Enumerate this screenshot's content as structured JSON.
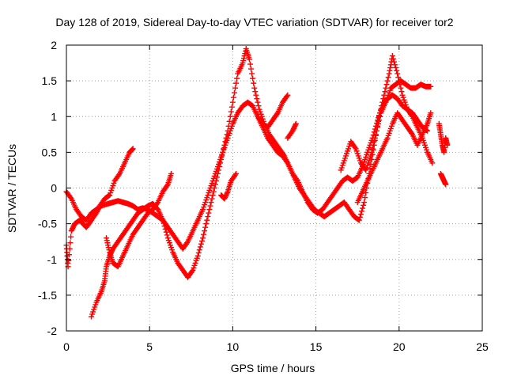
{
  "chart_data": {
    "type": "scatter",
    "title": "Day 128 of 2019, Sidereal Day-to-day VTEC variation (SDTVAR) for receiver tor2",
    "xlabel": "GPS time / hours",
    "ylabel": "SDTVAR / TECUs",
    "xlim": [
      0,
      25
    ],
    "ylim": [
      -2,
      2
    ],
    "x_ticks": [
      "0",
      "5",
      "10",
      "15",
      "20",
      "25"
    ],
    "y_ticks": [
      "-2",
      "-1.5",
      "-1",
      "-0.5",
      "0",
      "0.5",
      "1",
      "1.5",
      "2"
    ],
    "grid": true,
    "marker": "plus",
    "color": "#ff0000",
    "series": [
      {
        "points": [
          [
            0.0,
            -0.05
          ],
          [
            0.3,
            -0.15
          ],
          [
            0.6,
            -0.3
          ],
          [
            0.9,
            -0.4
          ],
          [
            1.2,
            -0.45
          ],
          [
            1.5,
            -0.35
          ],
          [
            1.8,
            -0.3
          ],
          [
            2.1,
            -0.25
          ],
          [
            2.5,
            -0.22
          ],
          [
            2.8,
            -0.2
          ],
          [
            3.1,
            -0.18
          ],
          [
            3.4,
            -0.2
          ],
          [
            3.7,
            -0.22
          ],
          [
            4.0,
            -0.25
          ],
          [
            4.3,
            -0.3
          ],
          [
            4.6,
            -0.28
          ],
          [
            4.9,
            -0.3
          ],
          [
            5.2,
            -0.35
          ],
          [
            5.5,
            -0.4
          ],
          [
            5.8,
            -0.45
          ],
          [
            6.1,
            -0.55
          ],
          [
            6.4,
            -0.65
          ],
          [
            6.7,
            -0.75
          ],
          [
            7.0,
            -0.85
          ],
          [
            7.3,
            -0.75
          ],
          [
            7.6,
            -0.6
          ],
          [
            7.9,
            -0.45
          ],
          [
            8.2,
            -0.3
          ],
          [
            8.5,
            -0.1
          ],
          [
            8.8,
            0.1
          ],
          [
            9.1,
            0.3
          ],
          [
            9.4,
            0.5
          ],
          [
            9.7,
            0.7
          ],
          [
            10.0,
            0.9
          ],
          [
            10.3,
            1.05
          ],
          [
            10.6,
            1.15
          ],
          [
            10.9,
            1.2
          ],
          [
            11.2,
            1.15
          ],
          [
            11.5,
            1.0
          ],
          [
            11.8,
            0.85
          ],
          [
            12.1,
            0.7
          ],
          [
            12.4,
            0.6
          ],
          [
            12.7,
            0.5
          ],
          [
            13.0,
            0.45
          ],
          [
            13.3,
            0.35
          ],
          [
            13.6,
            0.2
          ],
          [
            13.9,
            0.1
          ],
          [
            14.2,
            -0.05
          ],
          [
            14.5,
            -0.2
          ],
          [
            14.8,
            -0.3
          ],
          [
            15.1,
            -0.35
          ],
          [
            15.4,
            -0.3
          ],
          [
            15.7,
            -0.2
          ],
          [
            16.0,
            -0.1
          ],
          [
            16.3,
            0.0
          ],
          [
            16.6,
            0.1
          ],
          [
            16.9,
            0.15
          ],
          [
            17.2,
            0.1
          ],
          [
            17.5,
            0.15
          ],
          [
            17.8,
            0.3
          ],
          [
            18.1,
            0.5
          ],
          [
            18.4,
            0.7
          ],
          [
            18.7,
            0.95
          ],
          [
            19.0,
            1.15
          ],
          [
            19.3,
            1.25
          ],
          [
            19.6,
            1.3
          ],
          [
            19.9,
            1.25
          ],
          [
            20.2,
            1.15
          ],
          [
            20.5,
            1.1
          ],
          [
            20.8,
            1.05
          ],
          [
            21.1,
            0.95
          ],
          [
            21.4,
            0.85
          ],
          [
            21.7,
            0.8
          ]
        ]
      },
      {
        "points": [
          [
            1.5,
            -1.8
          ],
          [
            1.8,
            -1.6
          ],
          [
            2.1,
            -1.45
          ],
          [
            2.3,
            -1.3
          ],
          [
            2.4,
            -1.1
          ],
          [
            2.6,
            -0.95
          ],
          [
            2.8,
            -0.85
          ],
          [
            3.1,
            -0.75
          ],
          [
            3.4,
            -0.65
          ],
          [
            3.7,
            -0.55
          ],
          [
            4.0,
            -0.45
          ],
          [
            4.3,
            -0.35
          ],
          [
            4.6,
            -0.3
          ],
          [
            4.9,
            -0.25
          ],
          [
            5.2,
            -0.22
          ],
          [
            5.5,
            -0.3
          ],
          [
            5.8,
            -0.45
          ],
          [
            6.1,
            -0.7
          ],
          [
            6.4,
            -0.9
          ],
          [
            6.7,
            -1.05
          ],
          [
            7.0,
            -1.15
          ],
          [
            7.3,
            -1.25
          ],
          [
            7.6,
            -1.15
          ],
          [
            7.9,
            -0.95
          ],
          [
            8.2,
            -0.7
          ],
          [
            8.5,
            -0.4
          ],
          [
            8.8,
            -0.1
          ],
          [
            9.1,
            0.2
          ],
          [
            9.4,
            0.5
          ],
          [
            9.7,
            0.8
          ],
          [
            10.0,
            1.2
          ],
          [
            10.3,
            1.6
          ],
          [
            10.6,
            1.75
          ],
          [
            10.8,
            1.95
          ],
          [
            11.0,
            1.8
          ],
          [
            11.3,
            1.4
          ],
          [
            11.6,
            1.1
          ],
          [
            11.9,
            0.9
          ],
          [
            12.2,
            0.75
          ],
          [
            12.5,
            0.65
          ],
          [
            12.8,
            0.55
          ],
          [
            13.1,
            0.45
          ],
          [
            13.4,
            0.3
          ],
          [
            13.7,
            0.15
          ],
          [
            14.0,
            0.0
          ],
          [
            14.3,
            -0.1
          ],
          [
            14.6,
            -0.2
          ],
          [
            14.9,
            -0.3
          ],
          [
            15.2,
            -0.35
          ],
          [
            15.5,
            -0.4
          ],
          [
            15.8,
            -0.35
          ],
          [
            16.1,
            -0.3
          ],
          [
            16.4,
            -0.25
          ],
          [
            16.7,
            -0.2
          ],
          [
            17.0,
            -0.3
          ],
          [
            17.3,
            -0.4
          ],
          [
            17.6,
            -0.45
          ],
          [
            17.9,
            -0.2
          ],
          [
            18.2,
            0.2
          ],
          [
            18.5,
            0.6
          ],
          [
            18.8,
            1.0
          ],
          [
            19.1,
            1.3
          ],
          [
            19.4,
            1.6
          ],
          [
            19.6,
            1.85
          ],
          [
            19.9,
            1.6
          ],
          [
            20.2,
            1.3
          ],
          [
            20.5,
            1.1
          ],
          [
            20.8,
            1.0
          ],
          [
            21.1,
            0.85
          ],
          [
            21.4,
            0.7
          ],
          [
            21.7,
            0.5
          ],
          [
            22.0,
            0.35
          ]
        ]
      },
      {
        "points": [
          [
            0.0,
            -0.8
          ],
          [
            0.1,
            -1.1
          ],
          [
            0.3,
            -0.6
          ],
          [
            0.5,
            -0.5
          ],
          [
            0.8,
            -0.45
          ],
          [
            1.0,
            -0.5
          ],
          [
            1.2,
            -0.55
          ],
          [
            1.5,
            -0.45
          ],
          [
            1.8,
            -0.35
          ],
          [
            2.0,
            -0.25
          ],
          [
            2.3,
            -0.15
          ],
          [
            2.6,
            -0.1
          ],
          [
            2.9,
            0.1
          ],
          [
            3.2,
            0.2
          ],
          [
            3.5,
            0.35
          ],
          [
            3.8,
            0.5
          ],
          [
            4.0,
            0.55
          ]
        ]
      },
      {
        "points": [
          [
            2.4,
            -0.7
          ],
          [
            2.6,
            -0.9
          ],
          [
            2.8,
            -1.05
          ],
          [
            3.1,
            -1.1
          ],
          [
            3.4,
            -0.95
          ],
          [
            3.7,
            -0.8
          ],
          [
            4.0,
            -0.65
          ],
          [
            4.3,
            -0.55
          ],
          [
            4.6,
            -0.45
          ],
          [
            4.9,
            -0.35
          ],
          [
            5.2,
            -0.3
          ],
          [
            5.5,
            -0.2
          ],
          [
            5.8,
            -0.05
          ],
          [
            6.1,
            0.05
          ],
          [
            6.3,
            0.2
          ]
        ]
      },
      {
        "points": [
          [
            11.5,
            1.0
          ],
          [
            11.8,
            0.9
          ],
          [
            12.1,
            0.85
          ],
          [
            12.4,
            0.95
          ],
          [
            12.7,
            1.05
          ],
          [
            13.0,
            1.2
          ],
          [
            13.3,
            1.3
          ]
        ]
      },
      {
        "points": [
          [
            13.3,
            0.7
          ],
          [
            13.6,
            0.8
          ],
          [
            13.8,
            0.9
          ]
        ]
      },
      {
        "points": [
          [
            16.5,
            0.25
          ],
          [
            16.8,
            0.45
          ],
          [
            17.1,
            0.65
          ],
          [
            17.4,
            0.55
          ],
          [
            17.7,
            0.35
          ],
          [
            18.0,
            0.25
          ],
          [
            18.3,
            0.45
          ],
          [
            18.6,
            0.75
          ],
          [
            18.9,
            1.05
          ],
          [
            19.2,
            1.2
          ],
          [
            19.5,
            1.4
          ],
          [
            19.8,
            1.45
          ],
          [
            20.1,
            1.5
          ],
          [
            20.4,
            1.45
          ],
          [
            20.7,
            1.4
          ],
          [
            21.0,
            1.4
          ],
          [
            21.3,
            1.45
          ],
          [
            21.6,
            1.42
          ],
          [
            21.9,
            1.42
          ]
        ]
      },
      {
        "points": [
          [
            17.5,
            -0.2
          ],
          [
            17.8,
            -0.05
          ],
          [
            18.1,
            0.1
          ],
          [
            18.4,
            0.25
          ],
          [
            18.7,
            0.4
          ],
          [
            19.0,
            0.55
          ],
          [
            19.3,
            0.7
          ],
          [
            19.6,
            0.9
          ],
          [
            19.9,
            1.05
          ],
          [
            20.2,
            0.95
          ],
          [
            20.5,
            0.85
          ],
          [
            20.8,
            0.75
          ],
          [
            21.1,
            0.6
          ],
          [
            21.4,
            0.75
          ],
          [
            21.7,
            0.9
          ],
          [
            21.9,
            1.05
          ]
        ]
      },
      {
        "points": [
          [
            22.4,
            0.9
          ],
          [
            22.5,
            0.75
          ],
          [
            22.6,
            0.6
          ],
          [
            22.7,
            0.5
          ],
          [
            22.8,
            0.7
          ],
          [
            22.9,
            0.6
          ]
        ]
      },
      {
        "points": [
          [
            22.5,
            0.2
          ],
          [
            22.6,
            0.15
          ],
          [
            22.7,
            0.1
          ],
          [
            22.8,
            0.05
          ]
        ]
      },
      {
        "points": [
          [
            9.3,
            -0.1
          ],
          [
            9.5,
            -0.15
          ],
          [
            9.7,
            -0.05
          ],
          [
            9.9,
            0.1
          ],
          [
            10.2,
            0.2
          ]
        ]
      }
    ]
  }
}
